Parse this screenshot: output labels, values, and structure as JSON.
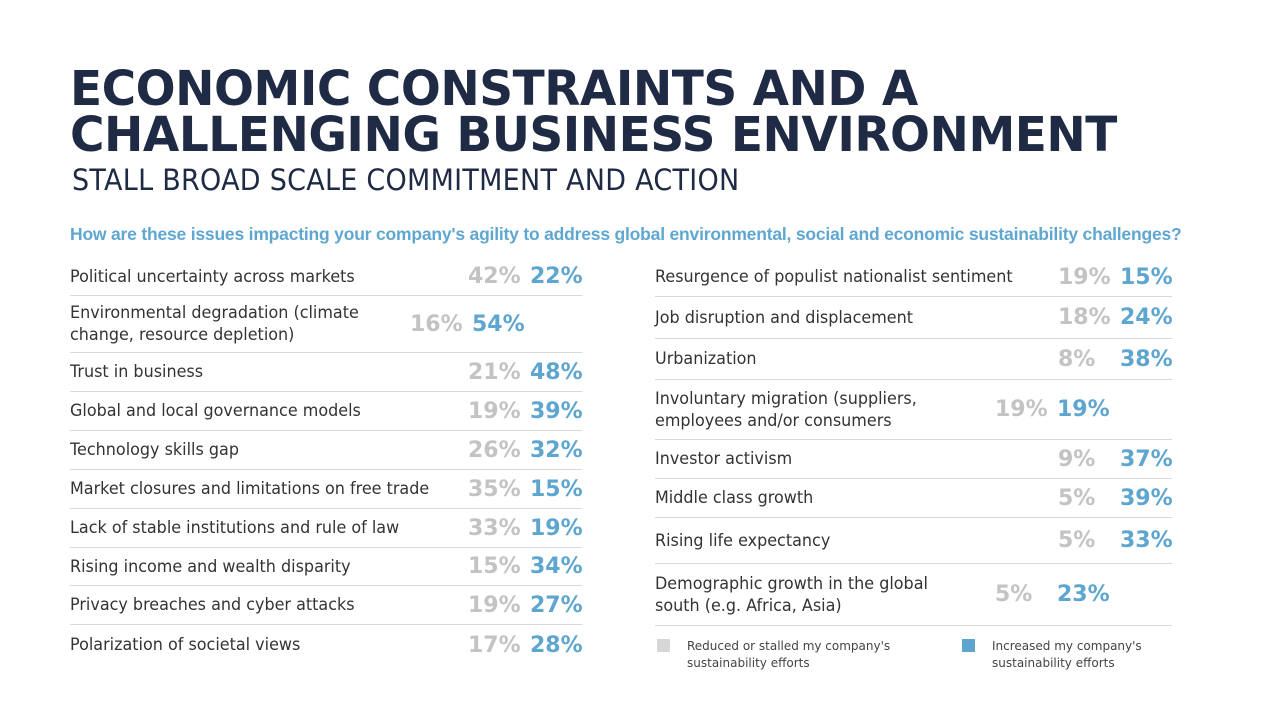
{
  "title_line1": "ECONOMIC CONSTRAINTS AND A",
  "title_line2": "CHALLENGING BUSINESS ENVIRONMENT",
  "subtitle": "STALL BROAD SCALE COMMITMENT AND ACTION",
  "question": "How are these issues impacting your company's agility to address global environmental, social and economic sustainability challenges?",
  "colors": {
    "reduced": "#c3c3c3",
    "increased": "#5ea5cf",
    "title": "#1f2a44",
    "question": "#5fa7d1"
  },
  "chart_data": {
    "type": "table",
    "title": "",
    "series": [
      {
        "name": "Reduced or stalled my company's sustainability efforts",
        "key": "reduced"
      },
      {
        "name": "Increased my company's sustainability efforts",
        "key": "increased"
      }
    ],
    "left_rows": [
      {
        "label": "Political uncertainty across markets",
        "reduced": "42%",
        "increased": "22%"
      },
      {
        "label": "Environmental degradation (climate change, resource depletion)",
        "reduced": "16%",
        "increased": "54%"
      },
      {
        "label": "Trust in business",
        "reduced": "21%",
        "increased": "48%"
      },
      {
        "label": "Global and local governance models",
        "reduced": "19%",
        "increased": "39%"
      },
      {
        "label": "Technology skills gap",
        "reduced": "26%",
        "increased": "32%"
      },
      {
        "label": "Market closures and limitations on free trade",
        "reduced": "35%",
        "increased": "15%"
      },
      {
        "label": "Lack of stable institutions and rule of law",
        "reduced": "33%",
        "increased": "19%"
      },
      {
        "label": "Rising income and wealth disparity",
        "reduced": "15%",
        "increased": "34%"
      },
      {
        "label": "Privacy breaches and cyber attacks",
        "reduced": "19%",
        "increased": "27%"
      },
      {
        "label": "Polarization of societal views",
        "reduced": "17%",
        "increased": "28%"
      }
    ],
    "right_rows": [
      {
        "label": "Resurgence of populist nationalist sentiment",
        "reduced": "19%",
        "increased": "15%"
      },
      {
        "label": "Job disruption and displacement",
        "reduced": "18%",
        "increased": "24%"
      },
      {
        "label": "Urbanization",
        "reduced": "8%",
        "increased": "38%"
      },
      {
        "label": "Involuntary migration (suppliers, employees and/or consumers",
        "reduced": "19%",
        "increased": "19%"
      },
      {
        "label": "Investor activism",
        "reduced": "9%",
        "increased": "37%"
      },
      {
        "label": "Middle class growth",
        "reduced": "5%",
        "increased": "39%"
      },
      {
        "label": "Rising life expectancy",
        "reduced": "5%",
        "increased": "33%"
      },
      {
        "label": "Demographic growth in the global south (e.g. Africa, Asia)",
        "reduced": "5%",
        "increased": "23%"
      }
    ]
  },
  "legend": {
    "reduced_label": "Reduced or stalled my company's sustainability efforts",
    "increased_label": "Increased my company's sustainability efforts"
  }
}
